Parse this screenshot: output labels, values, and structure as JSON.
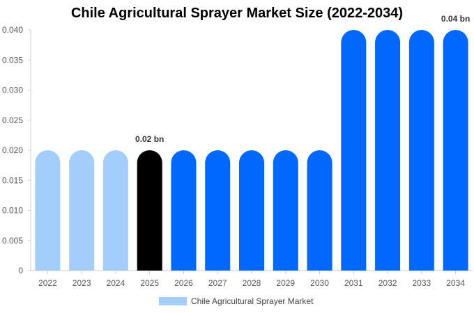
{
  "chart_data": {
    "type": "bar",
    "title": "Chile Agricultural Sprayer Market Size (2022-2034)",
    "categories": [
      "2022",
      "2023",
      "2024",
      "2025",
      "2026",
      "2027",
      "2028",
      "2029",
      "2030",
      "2031",
      "2032",
      "2033",
      "2034"
    ],
    "series": [
      {
        "name": "Chile Agricultural Sprayer Market",
        "values": [
          0.02,
          0.02,
          0.02,
          0.02,
          0.02,
          0.02,
          0.02,
          0.02,
          0.02,
          0.04,
          0.04,
          0.04,
          0.04
        ]
      }
    ],
    "bar_colors": [
      "#a3cefc",
      "#a3cefc",
      "#a3cefc",
      "#000000",
      "#0068ff",
      "#0068ff",
      "#0068ff",
      "#0068ff",
      "#0068ff",
      "#0068ff",
      "#0068ff",
      "#0068ff",
      "#0068ff"
    ],
    "data_labels": [
      {
        "category": "2025",
        "text": "0.02 bn"
      },
      {
        "category": "2034",
        "text": "0.04 bn"
      }
    ],
    "yticks": [
      "0",
      "0.005",
      "0.010",
      "0.015",
      "0.020",
      "0.025",
      "0.030",
      "0.035",
      "0.040"
    ],
    "ytick_values": [
      0,
      0.005,
      0.01,
      0.015,
      0.02,
      0.025,
      0.03,
      0.035,
      0.04
    ],
    "ylim": [
      0,
      0.04
    ],
    "xlabel": "",
    "ylabel": "",
    "grid": false,
    "legend_position": "bottom-center",
    "legend_color": "#a3cefc"
  }
}
